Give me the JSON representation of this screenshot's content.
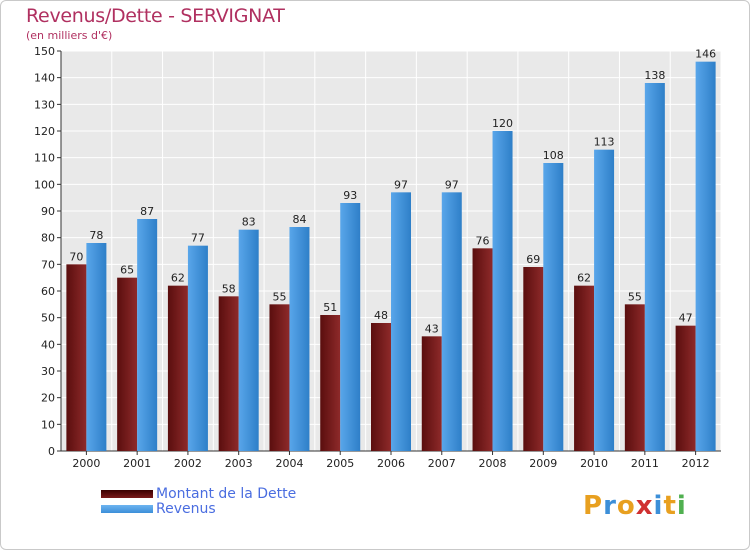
{
  "title": "Revenus/Dette - SERVIGNAT",
  "subtitle": "(en milliers d'€)",
  "logo_text": "Proxiti",
  "colors": {
    "title": "#b03060",
    "dette": "#7a1a1a",
    "revenus": "#3c8fd8",
    "legend_text": "#4a6de0"
  },
  "chart_data": {
    "type": "bar",
    "title": "Revenus/Dette - SERVIGNAT",
    "ylabel": "(en milliers d'€)",
    "xlabel": "",
    "categories": [
      "2000",
      "2001",
      "2002",
      "2003",
      "2004",
      "2005",
      "2006",
      "2007",
      "2008",
      "2009",
      "2010",
      "2011",
      "2012"
    ],
    "series": [
      {
        "name": "Montant de la Dette",
        "values": [
          70,
          65,
          62,
          58,
          55,
          51,
          48,
          43,
          76,
          69,
          62,
          55,
          47
        ]
      },
      {
        "name": "Revenus",
        "values": [
          78,
          87,
          77,
          83,
          84,
          93,
          97,
          97,
          120,
          108,
          113,
          138,
          146
        ]
      }
    ],
    "ylim": [
      0,
      150
    ],
    "yticks": [
      0,
      10,
      20,
      30,
      40,
      50,
      60,
      70,
      80,
      90,
      100,
      110,
      120,
      130,
      140,
      150
    ],
    "grid": true,
    "legend": "bottom-left"
  },
  "legend": {
    "items": [
      {
        "label": "Montant de la Dette"
      },
      {
        "label": "Revenus"
      }
    ]
  }
}
